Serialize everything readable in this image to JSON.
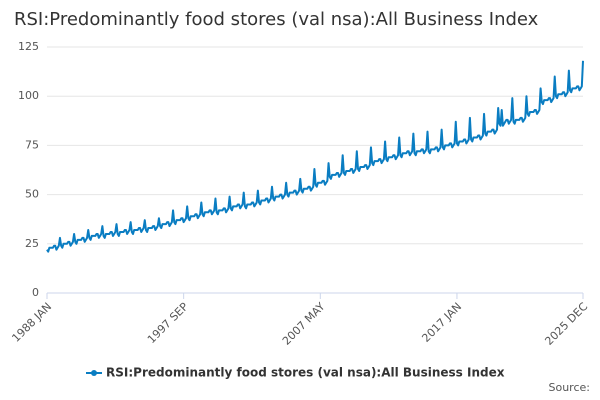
{
  "chart_data": {
    "type": "line",
    "title": "RSI:Predominantly food stores (val nsa):All Business Index",
    "x": [
      "1988 JAN",
      null,
      null,
      null,
      null,
      null,
      null,
      null,
      null,
      null,
      null,
      null,
      null,
      null,
      null,
      null,
      null,
      null,
      null,
      null,
      null,
      null,
      null,
      null,
      null,
      null,
      null,
      null,
      null,
      null,
      null,
      null,
      null,
      null,
      null,
      null,
      null,
      null,
      null,
      null,
      null,
      null,
      null,
      null,
      null,
      null,
      null,
      null,
      null,
      null,
      null,
      null,
      null,
      null,
      null,
      null,
      null,
      null,
      null,
      null,
      null,
      null,
      null,
      null,
      null,
      null,
      null,
      null,
      null,
      null,
      null,
      null,
      null,
      null,
      null,
      null,
      null,
      null,
      null,
      null,
      null,
      null,
      null,
      null,
      null,
      null,
      null,
      null,
      null,
      null,
      null,
      null,
      null,
      null,
      null,
      null,
      null,
      null,
      null,
      null,
      null,
      null,
      null,
      null,
      null,
      null,
      null,
      null,
      null,
      null,
      null,
      null,
      null,
      null,
      null,
      null,
      "1997 SEP",
      null,
      null,
      null,
      null,
      null,
      null,
      null,
      null,
      null,
      null,
      null,
      null,
      null,
      null,
      null,
      null,
      null,
      null,
      null,
      null,
      null,
      null,
      null,
      null,
      null,
      null,
      null,
      null,
      null,
      null,
      null,
      null,
      null,
      null,
      null,
      null,
      null,
      null,
      null,
      null,
      null,
      null,
      null,
      null,
      null,
      null,
      null,
      null,
      null,
      null,
      null,
      null,
      null,
      null,
      null,
      null,
      null,
      null,
      null,
      null,
      null,
      null,
      null,
      null,
      null,
      null,
      null,
      null,
      null,
      null,
      null,
      null,
      null,
      null,
      null,
      null,
      null,
      null,
      null,
      null,
      null,
      null,
      null,
      null,
      null,
      null,
      null,
      null,
      null,
      null,
      null,
      null,
      null,
      null,
      null,
      null,
      null,
      null,
      null,
      null,
      null,
      null,
      null,
      null,
      null,
      null,
      null,
      null,
      null,
      null,
      null,
      null,
      null,
      null,
      null,
      "2007 MAY",
      null,
      null,
      null,
      null,
      null,
      null,
      null,
      null,
      null,
      null,
      null,
      null,
      null,
      null,
      null,
      null,
      null,
      null,
      null,
      null,
      null,
      null,
      null,
      null,
      null,
      null,
      null,
      null,
      null,
      null,
      null,
      null,
      null,
      null,
      null,
      null,
      null,
      null,
      null,
      null,
      null,
      null,
      null,
      null,
      null,
      null,
      null,
      null,
      null,
      null,
      null,
      null,
      null,
      null,
      null,
      null,
      null,
      null,
      null,
      null,
      null,
      null,
      null,
      null,
      null,
      null,
      null,
      null,
      null,
      null,
      null,
      null,
      null,
      null,
      null,
      null,
      null,
      null,
      null,
      null,
      null,
      null,
      null,
      null,
      null,
      null,
      null,
      null,
      null,
      null,
      null,
      null,
      null,
      null,
      null,
      null,
      null,
      null,
      null,
      null,
      null,
      null,
      null,
      null,
      null,
      null,
      null,
      null,
      null,
      null,
      null,
      null,
      null,
      null,
      null,
      "2017 JAN",
      null,
      null,
      null,
      null,
      null,
      null,
      null,
      null,
      null,
      null,
      null,
      null,
      null,
      null,
      null,
      null,
      null,
      null,
      null,
      null,
      null,
      null,
      null,
      null,
      null,
      null,
      null,
      null,
      null,
      null,
      null,
      null,
      null,
      null,
      null,
      null,
      null,
      null,
      null,
      null,
      null,
      null,
      null,
      null,
      null,
      null,
      null,
      null,
      null,
      null,
      null,
      null,
      null,
      null,
      null,
      null,
      null,
      null,
      null,
      null,
      null,
      null,
      null,
      null,
      null,
      null,
      null,
      null,
      null,
      null,
      null,
      null,
      null,
      null,
      null,
      null,
      null,
      null,
      null,
      null,
      null,
      null,
      null,
      null,
      null,
      null,
      null,
      null,
      null,
      null,
      null,
      null,
      null,
      null,
      null,
      null,
      null,
      null,
      null,
      null,
      null,
      null,
      null,
      null,
      null,
      null,
      "2025 DEC"
    ],
    "series": [
      {
        "name": "RSI:Predominantly food stores (val nsa):All Business Index",
        "color": "#0a7dc2",
        "values": [
          22,
          21,
          23,
          23,
          23,
          23,
          24,
          24,
          22,
          23,
          24,
          28,
          24,
          23,
          25,
          25,
          25,
          25,
          26,
          26,
          24,
          25,
          26,
          30,
          26,
          25,
          27,
          27,
          27,
          27,
          28,
          28,
          26,
          27,
          28,
          32,
          28,
          27,
          29,
          29,
          29,
          29,
          30,
          30,
          28,
          29,
          30,
          34,
          29,
          28,
          30,
          30,
          30,
          30,
          31,
          31,
          29,
          30,
          31,
          35,
          30,
          29,
          31,
          31,
          31,
          31,
          32,
          32,
          30,
          31,
          32,
          36,
          31,
          30,
          32,
          32,
          32,
          32,
          33,
          33,
          31,
          32,
          33,
          37,
          32,
          31,
          33,
          33,
          33,
          33,
          34,
          34,
          32,
          33,
          34,
          38,
          34,
          33,
          35,
          35,
          35,
          35,
          36,
          36,
          34,
          35,
          36,
          42,
          36,
          35,
          37,
          37,
          37,
          37,
          38,
          38,
          36,
          37,
          38,
          44,
          38,
          37,
          39,
          39,
          39,
          39,
          40,
          40,
          38,
          39,
          40,
          46,
          40,
          39,
          41,
          41,
          41,
          41,
          42,
          42,
          40,
          41,
          42,
          48,
          41,
          40,
          42,
          42,
          42,
          42,
          43,
          43,
          41,
          42,
          43,
          49,
          43,
          42,
          44,
          44,
          44,
          44,
          45,
          45,
          43,
          44,
          45,
          51,
          44,
          43,
          45,
          45,
          45,
          45,
          46,
          46,
          44,
          45,
          46,
          52,
          46,
          45,
          47,
          47,
          47,
          47,
          48,
          48,
          46,
          47,
          48,
          54,
          48,
          47,
          49,
          49,
          49,
          49,
          50,
          50,
          48,
          49,
          50,
          56,
          50,
          49,
          51,
          51,
          51,
          51,
          52,
          52,
          50,
          51,
          52,
          58,
          52,
          51,
          53,
          53,
          53,
          53,
          54,
          54,
          52,
          53,
          54,
          63,
          55,
          54,
          56,
          56,
          56,
          56,
          57,
          57,
          55,
          56,
          57,
          66,
          59,
          58,
          60,
          60,
          60,
          60,
          61,
          61,
          59,
          60,
          61,
          70,
          61,
          60,
          62,
          62,
          62,
          62,
          63,
          63,
          61,
          62,
          63,
          72,
          63,
          62,
          64,
          64,
          64,
          64,
          65,
          65,
          63,
          64,
          65,
          74,
          66,
          65,
          67,
          67,
          67,
          67,
          68,
          68,
          66,
          67,
          68,
          77,
          68,
          67,
          69,
          69,
          69,
          69,
          70,
          70,
          68,
          69,
          70,
          79,
          70,
          69,
          71,
          71,
          71,
          71,
          72,
          72,
          70,
          71,
          72,
          81,
          71,
          70,
          72,
          72,
          72,
          72,
          73,
          73,
          71,
          72,
          73,
          82,
          72,
          71,
          73,
          73,
          73,
          73,
          74,
          74,
          72,
          73,
          74,
          83,
          74,
          73,
          75,
          75,
          75,
          75,
          76,
          76,
          74,
          75,
          76,
          87,
          76,
          75,
          77,
          77,
          77,
          77,
          78,
          78,
          76,
          77,
          78,
          89,
          78,
          77,
          79,
          79,
          79,
          79,
          80,
          80,
          78,
          79,
          80,
          91,
          81,
          80,
          82,
          82,
          82,
          82,
          83,
          83,
          81,
          82,
          83,
          94,
          86,
          85,
          93,
          85,
          86,
          87,
          88,
          88,
          86,
          87,
          88,
          99,
          87,
          86,
          88,
          88,
          88,
          88,
          89,
          89,
          87,
          88,
          89,
          100,
          91,
          90,
          92,
          92,
          92,
          92,
          93,
          93,
          91,
          92,
          93,
          104,
          97,
          96,
          98,
          98,
          98,
          98,
          99,
          99,
          97,
          98,
          99,
          110,
          100,
          99,
          101,
          101,
          101,
          101,
          102,
          102,
          100,
          101,
          102,
          113,
          103,
          102,
          104,
          104,
          104,
          104,
          105,
          105,
          103,
          104,
          105,
          118
        ]
      }
    ],
    "ylim": [
      0,
      125
    ],
    "yticks": [
      0,
      25,
      50,
      75,
      100,
      125
    ],
    "grid": true,
    "source": "Source:"
  }
}
